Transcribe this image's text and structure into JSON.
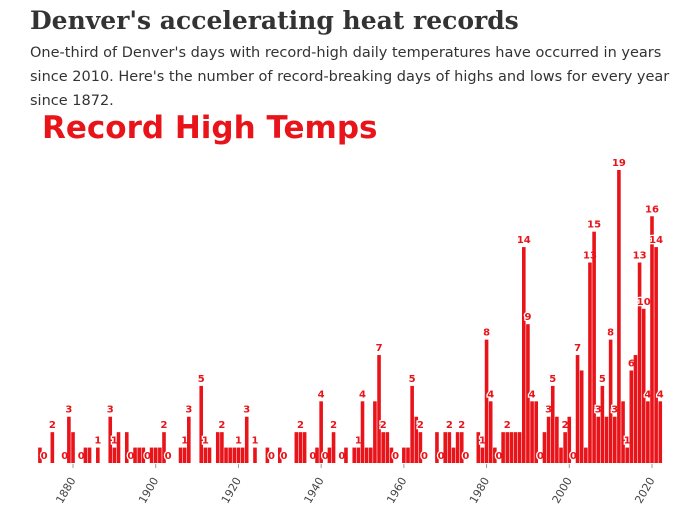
{
  "header": {
    "title": "Denver's accelerating heat records",
    "subtitle": "One-third of Denver's days with record-high daily temperatures have occurred in years since 2010. Here's the number of record-breaking days of highs and lows for every year since 1872."
  },
  "chart_data": {
    "type": "bar",
    "title": "Record High Temps",
    "color": "#e8141a",
    "xlim": [
      1871,
      2023
    ],
    "xticks": [
      1880,
      1900,
      1920,
      1940,
      1960,
      1980,
      2000,
      2020
    ],
    "x": [
      1872,
      1873,
      1874,
      1875,
      1876,
      1877,
      1878,
      1879,
      1880,
      1881,
      1882,
      1883,
      1884,
      1885,
      1886,
      1887,
      1888,
      1889,
      1890,
      1891,
      1892,
      1893,
      1894,
      1895,
      1896,
      1897,
      1898,
      1899,
      1900,
      1901,
      1902,
      1903,
      1904,
      1905,
      1906,
      1907,
      1908,
      1909,
      1910,
      1911,
      1912,
      1913,
      1914,
      1915,
      1916,
      1917,
      1918,
      1919,
      1920,
      1921,
      1922,
      1923,
      1924,
      1925,
      1926,
      1927,
      1928,
      1929,
      1930,
      1931,
      1932,
      1933,
      1934,
      1935,
      1936,
      1937,
      1938,
      1939,
      1940,
      1941,
      1942,
      1943,
      1944,
      1945,
      1946,
      1947,
      1948,
      1949,
      1950,
      1951,
      1952,
      1953,
      1954,
      1955,
      1956,
      1957,
      1958,
      1959,
      1960,
      1961,
      1962,
      1963,
      1964,
      1965,
      1966,
      1967,
      1968,
      1969,
      1970,
      1971,
      1972,
      1973,
      1974,
      1975,
      1976,
      1977,
      1978,
      1979,
      1980,
      1981,
      1982,
      1983,
      1984,
      1985,
      1986,
      1987,
      1988,
      1989,
      1990,
      1991,
      1992,
      1993,
      1994,
      1995,
      1996,
      1997,
      1998,
      1999,
      2000,
      2001,
      2002,
      2003,
      2004,
      2005,
      2006,
      2007,
      2008,
      2009,
      2010,
      2011,
      2012,
      2013,
      2014,
      2015,
      2016,
      2017,
      2018,
      2019,
      2020,
      2021,
      2022
    ],
    "values": [
      1,
      0,
      0,
      2,
      0,
      0,
      0,
      3,
      2,
      0,
      0,
      1,
      1,
      0,
      1,
      0,
      0,
      3,
      1,
      2,
      0,
      2,
      0,
      1,
      1,
      1,
      0,
      1,
      1,
      1,
      2,
      0,
      0,
      0,
      1,
      1,
      3,
      0,
      0,
      5,
      1,
      1,
      0,
      2,
      2,
      1,
      1,
      1,
      1,
      1,
      3,
      0,
      1,
      0,
      0,
      1,
      0,
      0,
      1,
      0,
      0,
      0,
      2,
      2,
      2,
      0,
      0,
      1,
      4,
      0,
      1,
      2,
      0,
      0,
      1,
      0,
      1,
      1,
      4,
      1,
      1,
      4,
      7,
      2,
      2,
      1,
      0,
      0,
      1,
      1,
      5,
      3,
      2,
      0,
      0,
      0,
      2,
      0,
      2,
      2,
      1,
      2,
      2,
      0,
      0,
      0,
      2,
      1,
      8,
      4,
      1,
      0,
      2,
      2,
      2,
      2,
      2,
      14,
      9,
      4,
      4,
      0,
      2,
      3,
      5,
      3,
      1,
      2,
      3,
      0,
      7,
      6,
      1,
      13,
      15,
      3,
      5,
      3,
      8,
      3,
      19,
      4,
      1,
      6,
      7,
      13,
      10,
      4,
      16,
      14,
      4
    ],
    "value_labels": [
      null,
      "0",
      null,
      "2",
      null,
      null,
      "0",
      "3",
      null,
      null,
      "0",
      null,
      null,
      null,
      "1",
      null,
      null,
      "3",
      "1",
      null,
      null,
      null,
      "0",
      null,
      null,
      null,
      "0",
      null,
      null,
      null,
      "2",
      "0",
      null,
      null,
      null,
      "1",
      "3",
      null,
      null,
      "5",
      "1",
      null,
      null,
      null,
      "2",
      null,
      null,
      null,
      "1",
      null,
      "3",
      null,
      "1",
      null,
      null,
      null,
      "0",
      null,
      null,
      "0",
      null,
      null,
      null,
      "2",
      null,
      null,
      "0",
      null,
      "4",
      "0",
      null,
      "2",
      null,
      "0",
      null,
      null,
      null,
      "1",
      "4",
      null,
      null,
      null,
      "7",
      "2",
      null,
      null,
      "0",
      null,
      null,
      null,
      "5",
      null,
      "2",
      "0",
      null,
      null,
      null,
      "0",
      null,
      "2",
      null,
      null,
      "2",
      "0",
      null,
      null,
      null,
      "1",
      "8",
      "4",
      null,
      "0",
      null,
      "2",
      null,
      null,
      null,
      "14",
      "9",
      "4",
      null,
      "0",
      null,
      "3",
      "5",
      null,
      null,
      "2",
      null,
      "0",
      "7",
      null,
      null,
      "13",
      "15",
      "3",
      "5",
      null,
      "8",
      "3",
      "19",
      null,
      "1",
      "6",
      null,
      "13",
      "10",
      "4",
      "16",
      "14",
      "4"
    ]
  }
}
